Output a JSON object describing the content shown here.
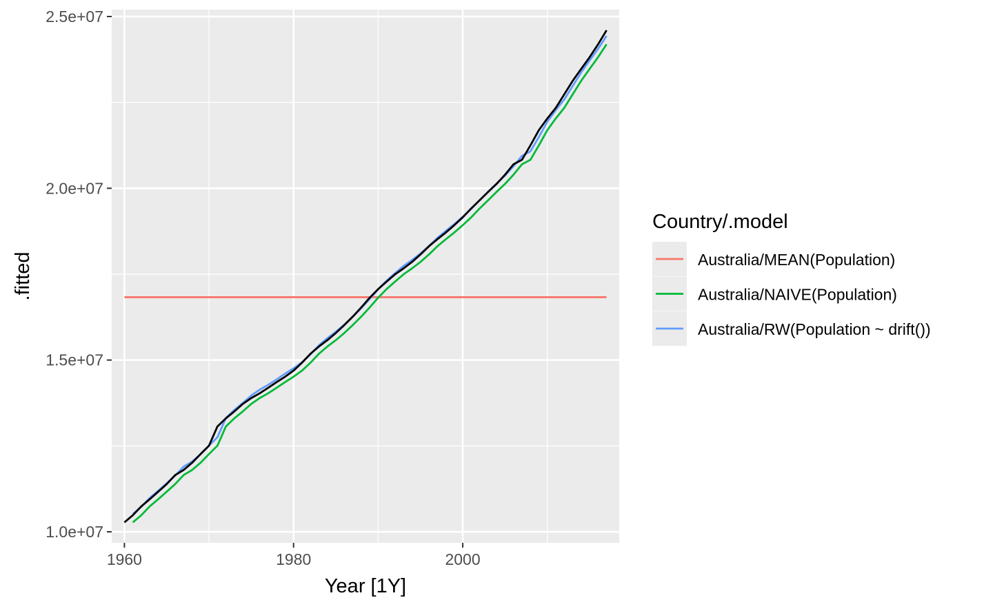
{
  "chart_data": {
    "type": "line",
    "title": "",
    "xlabel": "Year [1Y]",
    "ylabel": ".fitted",
    "xlim": [
      1958.5,
      2018.5
    ],
    "ylim": [
      9680000,
      25200000
    ],
    "x_ticks": [
      1960,
      1980,
      2000
    ],
    "x_tick_labels": [
      "1960",
      "1980",
      "2000"
    ],
    "x_minor_ticks": [
      1970,
      1990,
      2010
    ],
    "y_ticks": [
      10000000,
      15000000,
      20000000,
      25000000
    ],
    "y_tick_labels": [
      "1.0e+07",
      "1.5e+07",
      "2.0e+07",
      "2.5e+07"
    ],
    "y_minor_ticks": [
      12500000,
      17500000,
      22500000
    ],
    "grid": true,
    "legend": {
      "title": "Country/.model",
      "position": "right"
    },
    "series": [
      {
        "name": "Australia/MEAN(Population)",
        "color": "#F8766D",
        "x": [
          1960,
          2017
        ],
        "y": [
          16830000,
          16830000
        ]
      },
      {
        "name": "Australia/NAIVE(Population)",
        "color": "#00BA38",
        "x": [
          1961,
          1962,
          1963,
          1964,
          1965,
          1966,
          1967,
          1968,
          1969,
          1970,
          1971,
          1972,
          1973,
          1974,
          1975,
          1976,
          1977,
          1978,
          1979,
          1980,
          1981,
          1982,
          1983,
          1984,
          1985,
          1986,
          1987,
          1988,
          1989,
          1990,
          1991,
          1992,
          1993,
          1994,
          1995,
          1996,
          1997,
          1998,
          1999,
          2000,
          2001,
          2002,
          2003,
          2004,
          2005,
          2006,
          2007,
          2008,
          2009,
          2010,
          2011,
          2012,
          2013,
          2014,
          2015,
          2016,
          2017
        ],
        "y": [
          10276000,
          10483000,
          10742000,
          10950000,
          11167000,
          11388000,
          11651000,
          11799000,
          12009000,
          12263000,
          12507000,
          13067000,
          13304000,
          13505000,
          13723000,
          13893000,
          14033000,
          14192000,
          14358000,
          14514000,
          14692000,
          14923000,
          15184000,
          15394000,
          15580000,
          15788000,
          16018000,
          16264000,
          16532000,
          16814000,
          17065000,
          17284000,
          17495000,
          17667000,
          17855000,
          18072000,
          18311000,
          18517000,
          18711000,
          18926000,
          19153000,
          19413000,
          19651000,
          19895000,
          20127000,
          20395000,
          20698000,
          20828000,
          21249000,
          21692000,
          22032000,
          22340000,
          22733000,
          23128000,
          23475000,
          23816000,
          24190000
        ]
      },
      {
        "name": "Australia/RW(Population ~ drift())",
        "color": "#619CFF",
        "x": [
          1961,
          1962,
          1963,
          1964,
          1965,
          1966,
          1967,
          1968,
          1969,
          1970,
          1971,
          1972,
          1973,
          1974,
          1975,
          1976,
          1977,
          1978,
          1979,
          1980,
          1981,
          1982,
          1983,
          1984,
          1985,
          1986,
          1987,
          1988,
          1989,
          1990,
          1991,
          1992,
          1993,
          1994,
          1995,
          1996,
          1997,
          1998,
          1999,
          2000,
          2001,
          2002,
          2003,
          2004,
          2005,
          2006,
          2007,
          2008,
          2009,
          2010,
          2011,
          2012,
          2013,
          2014,
          2015,
          2016,
          2017
        ],
        "y": [
          10521000,
          10728000,
          10987000,
          11195000,
          11412000,
          11633000,
          11896000,
          12044000,
          12254000,
          12508000,
          12752000,
          13312000,
          13549000,
          13750000,
          13968000,
          14138000,
          14278000,
          14437000,
          14603000,
          14759000,
          14937000,
          15168000,
          15429000,
          15639000,
          15825000,
          16033000,
          16263000,
          16509000,
          16777000,
          17059000,
          17310000,
          17529000,
          17740000,
          17912000,
          18100000,
          18317000,
          18556000,
          18762000,
          18956000,
          19171000,
          19398000,
          19658000,
          19896000,
          20140000,
          20372000,
          20640000,
          20943000,
          21073000,
          21494000,
          21937000,
          22277000,
          22585000,
          22978000,
          23373000,
          23720000,
          24061000,
          24435000
        ]
      },
      {
        "name": "",
        "color": "#000000",
        "x": [
          1960,
          1961,
          1962,
          1963,
          1964,
          1965,
          1966,
          1967,
          1968,
          1969,
          1970,
          1971,
          1972,
          1973,
          1974,
          1975,
          1976,
          1977,
          1978,
          1979,
          1980,
          1981,
          1982,
          1983,
          1984,
          1985,
          1986,
          1987,
          1988,
          1989,
          1990,
          1991,
          1992,
          1993,
          1994,
          1995,
          1996,
          1997,
          1998,
          1999,
          2000,
          2001,
          2002,
          2003,
          2004,
          2005,
          2006,
          2007,
          2008,
          2009,
          2010,
          2011,
          2012,
          2013,
          2014,
          2015,
          2016,
          2017
        ],
        "y": [
          10276000,
          10483000,
          10742000,
          10950000,
          11167000,
          11388000,
          11651000,
          11799000,
          12009000,
          12263000,
          12507000,
          13067000,
          13304000,
          13505000,
          13723000,
          13893000,
          14033000,
          14192000,
          14358000,
          14514000,
          14692000,
          14923000,
          15184000,
          15394000,
          15580000,
          15788000,
          16018000,
          16264000,
          16532000,
          16814000,
          17065000,
          17284000,
          17495000,
          17667000,
          17855000,
          18072000,
          18311000,
          18517000,
          18711000,
          18926000,
          19153000,
          19413000,
          19651000,
          19895000,
          20127000,
          20395000,
          20698000,
          20828000,
          21249000,
          21692000,
          22032000,
          22340000,
          22733000,
          23128000,
          23475000,
          23816000,
          24190000,
          24600000
        ]
      }
    ]
  }
}
